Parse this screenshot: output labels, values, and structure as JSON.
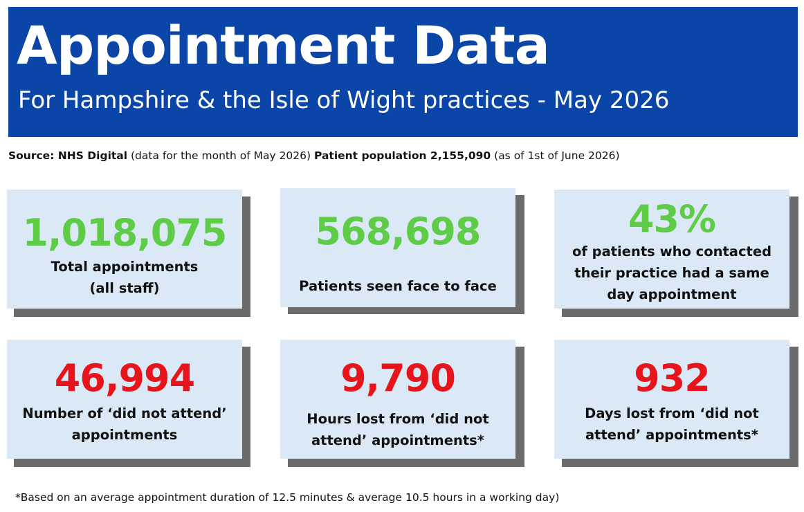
{
  "header": {
    "title": "Appointment Data",
    "subtitle": "For Hampshire & the Isle of Wight practices - May 2026",
    "background_color": "#0b45a8"
  },
  "source": {
    "label": "Source: NHS Digital",
    "paren1": "(data for the month of May 2026)",
    "population": "Patient population 2,155,090",
    "paren2": "(as of 1st of June 2026)"
  },
  "cards": [
    {
      "value": "1,018,075",
      "line1": "Total appointments",
      "line2": "(all staff)",
      "line3": "",
      "color": "#5fcc47"
    },
    {
      "value": "568,698",
      "line1": "Patients seen face to face",
      "line2": "",
      "line3": "",
      "color": "#5fcc47"
    },
    {
      "value": "43%",
      "line1": "of patients who contacted",
      "line2": "their practice had a same",
      "line3": "day appointment",
      "color": "#5fcc47"
    },
    {
      "value": "46,994",
      "line1": "Number of ‘did not attend’",
      "line2": "appointments",
      "line3": "",
      "color": "#e8141c"
    },
    {
      "value": "9,790",
      "line1": "Hours lost from ‘did not",
      "line2": "attend’ appointments*",
      "line3": "",
      "color": "#e8141c"
    },
    {
      "value": "932",
      "line1": "Days lost from ‘did not",
      "line2": "attend’ appointments*",
      "line3": "",
      "color": "#e8141c"
    }
  ],
  "footnote": "*Based on an average appointment duration of 12.5 minutes & average 10.5 hours in a working day)"
}
